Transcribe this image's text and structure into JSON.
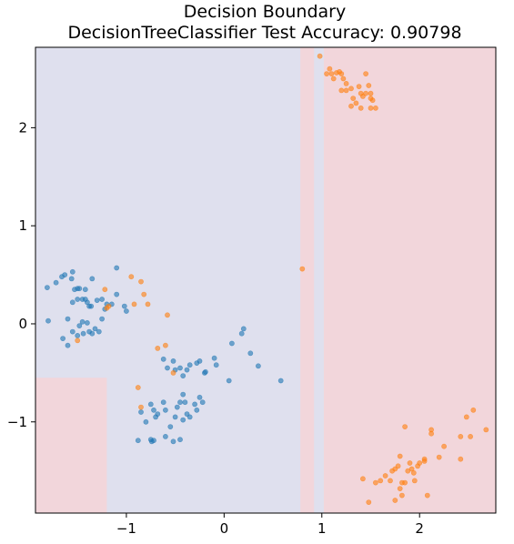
{
  "chart_data": {
    "type": "scatter",
    "title": "Decision Boundary",
    "subtitle": "DecisionTreeClassifier Test Accuracy: 0.90798",
    "xlim": [
      -1.93,
      2.78
    ],
    "ylim": [
      -1.93,
      2.82
    ],
    "x_ticks": [
      {
        "value": -1,
        "label": "−1"
      },
      {
        "value": 0,
        "label": "0"
      },
      {
        "value": 1,
        "label": "1"
      },
      {
        "value": 2,
        "label": "2"
      }
    ],
    "y_ticks": [
      {
        "value": -1,
        "label": "−1"
      },
      {
        "value": 0,
        "label": "0"
      },
      {
        "value": 1,
        "label": "1"
      },
      {
        "value": 2,
        "label": "2"
      }
    ],
    "grid": false,
    "regions": [
      {
        "class": 1,
        "x": [
          0.78,
          0.92
        ],
        "y": [
          -1.93,
          2.82
        ],
        "color": "#f2d6db"
      },
      {
        "class": 1,
        "x": [
          1.02,
          2.78
        ],
        "y": [
          -1.93,
          2.82
        ],
        "color": "#f2d6db"
      },
      {
        "class": 1,
        "x": [
          -1.93,
          -1.2
        ],
        "y": [
          -1.93,
          -0.55
        ],
        "color": "#f2d6db"
      }
    ],
    "background_color": "#dfe0ee",
    "series": [
      {
        "color": "#1f77b4",
        "points": [
          [
            -1.81,
            0.37
          ],
          [
            -1.72,
            0.42
          ],
          [
            -1.66,
            0.48
          ],
          [
            -1.63,
            0.5
          ],
          [
            -1.55,
            0.53
          ],
          [
            -1.56,
            0.46
          ],
          [
            -1.5,
            0.36
          ],
          [
            -1.53,
            0.35
          ],
          [
            -1.48,
            0.36
          ],
          [
            -1.5,
            0.25
          ],
          [
            -1.45,
            0.25
          ],
          [
            -1.42,
            0.25
          ],
          [
            -1.55,
            0.22
          ],
          [
            -1.4,
            0.22
          ],
          [
            -1.38,
            0.18
          ],
          [
            -1.36,
            0.18
          ],
          [
            -1.35,
            0.46
          ],
          [
            -1.3,
            0.24
          ],
          [
            -1.25,
            0.25
          ],
          [
            -1.2,
            0.2
          ],
          [
            -1.45,
            0.02
          ],
          [
            -1.48,
            -0.02
          ],
          [
            -1.44,
            -0.1
          ],
          [
            -1.4,
            0.01
          ],
          [
            -1.38,
            -0.08
          ],
          [
            -1.35,
            -0.1
          ],
          [
            -1.32,
            -0.05
          ],
          [
            -1.28,
            -0.08
          ],
          [
            -1.25,
            0.05
          ],
          [
            -1.6,
            0.05
          ],
          [
            -1.65,
            -0.15
          ],
          [
            -1.6,
            -0.22
          ],
          [
            -1.55,
            -0.08
          ],
          [
            -1.5,
            -0.12
          ],
          [
            -1.8,
            0.03
          ],
          [
            -1.22,
            0.15
          ],
          [
            -1.15,
            0.2
          ],
          [
            -1.1,
            0.57
          ],
          [
            -1.1,
            0.3
          ],
          [
            -1.02,
            0.18
          ],
          [
            -1.0,
            0.13
          ],
          [
            -1.42,
            0.35
          ],
          [
            -0.62,
            -0.36
          ],
          [
            -0.58,
            -0.45
          ],
          [
            -0.52,
            -0.38
          ],
          [
            -0.5,
            -0.47
          ],
          [
            -0.45,
            -0.45
          ],
          [
            -0.42,
            -0.53
          ],
          [
            -0.38,
            -0.47
          ],
          [
            -0.35,
            -0.42
          ],
          [
            -0.28,
            -0.4
          ],
          [
            -0.25,
            -0.38
          ],
          [
            -0.2,
            -0.5
          ],
          [
            -0.19,
            -0.49
          ],
          [
            -0.1,
            -0.35
          ],
          [
            -0.08,
            -0.42
          ],
          [
            0.05,
            -0.58
          ],
          [
            0.08,
            -0.2
          ],
          [
            0.18,
            -0.1
          ],
          [
            0.2,
            -0.05
          ],
          [
            0.27,
            -0.3
          ],
          [
            0.35,
            -0.43
          ],
          [
            0.58,
            -0.58
          ],
          [
            -0.85,
            -0.9
          ],
          [
            -0.8,
            -1.0
          ],
          [
            -0.75,
            -0.82
          ],
          [
            -0.72,
            -0.88
          ],
          [
            -0.7,
            -0.95
          ],
          [
            -0.68,
            -0.92
          ],
          [
            -0.62,
            -0.8
          ],
          [
            -0.6,
            -0.88
          ],
          [
            -0.55,
            -1.05
          ],
          [
            -0.5,
            -0.95
          ],
          [
            -0.48,
            -0.85
          ],
          [
            -0.45,
            -0.8
          ],
          [
            -0.42,
            -0.72
          ],
          [
            -0.4,
            -0.8
          ],
          [
            -0.38,
            -0.92
          ],
          [
            -0.35,
            -0.95
          ],
          [
            -0.3,
            -0.82
          ],
          [
            -0.28,
            -0.88
          ],
          [
            -0.25,
            -0.75
          ],
          [
            -0.22,
            -0.8
          ],
          [
            -0.6,
            -1.15
          ],
          [
            -0.52,
            -1.2
          ],
          [
            -0.72,
            -1.19
          ],
          [
            -0.74,
            -1.2
          ],
          [
            -0.88,
            -1.19
          ],
          [
            -0.45,
            -1.18
          ],
          [
            -0.42,
            -0.98
          ],
          [
            -0.75,
            -1.18
          ]
        ]
      },
      {
        "color": "#ff7f0e",
        "points": [
          [
            -1.22,
            0.35
          ],
          [
            -1.18,
            0.18
          ],
          [
            -0.95,
            0.48
          ],
          [
            -0.85,
            0.43
          ],
          [
            -0.82,
            0.3
          ],
          [
            -0.78,
            0.2
          ],
          [
            -0.68,
            -0.25
          ],
          [
            -0.6,
            -0.22
          ],
          [
            -0.58,
            0.09
          ],
          [
            -0.52,
            -0.5
          ],
          [
            -0.88,
            -0.65
          ],
          [
            -0.85,
            -0.85
          ],
          [
            -1.5,
            -0.17
          ],
          [
            -1.2,
            0.16
          ],
          [
            -0.92,
            0.2
          ],
          [
            0.8,
            0.56
          ],
          [
            0.98,
            2.73
          ],
          [
            1.05,
            2.55
          ],
          [
            1.08,
            2.6
          ],
          [
            1.1,
            2.55
          ],
          [
            1.12,
            2.5
          ],
          [
            1.15,
            2.56
          ],
          [
            1.18,
            2.57
          ],
          [
            1.2,
            2.55
          ],
          [
            1.22,
            2.5
          ],
          [
            1.25,
            2.45
          ],
          [
            1.25,
            2.38
          ],
          [
            1.3,
            2.4
          ],
          [
            1.32,
            2.3
          ],
          [
            1.35,
            2.25
          ],
          [
            1.38,
            2.42
          ],
          [
            1.4,
            2.35
          ],
          [
            1.42,
            2.32
          ],
          [
            1.45,
            2.55
          ],
          [
            1.48,
            2.43
          ],
          [
            1.5,
            2.35
          ],
          [
            1.5,
            2.3
          ],
          [
            1.52,
            2.28
          ],
          [
            1.55,
            2.2
          ],
          [
            1.5,
            2.2
          ],
          [
            1.4,
            2.2
          ],
          [
            1.3,
            2.22
          ],
          [
            1.2,
            2.38
          ],
          [
            1.45,
            2.35
          ],
          [
            1.42,
            -1.58
          ],
          [
            1.48,
            -1.82
          ],
          [
            1.55,
            -1.62
          ],
          [
            1.6,
            -1.6
          ],
          [
            1.65,
            -1.55
          ],
          [
            1.7,
            -1.6
          ],
          [
            1.72,
            -1.5
          ],
          [
            1.75,
            -1.48
          ],
          [
            1.78,
            -1.45
          ],
          [
            1.8,
            -1.35
          ],
          [
            1.8,
            -1.68
          ],
          [
            1.82,
            -1.75
          ],
          [
            1.85,
            -1.62
          ],
          [
            1.88,
            -1.5
          ],
          [
            1.9,
            -1.42
          ],
          [
            1.92,
            -1.48
          ],
          [
            1.94,
            -1.52
          ],
          [
            1.95,
            -1.6
          ],
          [
            1.98,
            -1.45
          ],
          [
            2.0,
            -1.42
          ],
          [
            2.05,
            -1.38
          ],
          [
            2.08,
            -1.75
          ],
          [
            2.12,
            -1.12
          ],
          [
            2.12,
            -1.08
          ],
          [
            2.2,
            -1.36
          ],
          [
            2.25,
            -1.25
          ],
          [
            2.42,
            -1.15
          ],
          [
            2.42,
            -1.38
          ],
          [
            2.48,
            -0.95
          ],
          [
            2.52,
            -1.15
          ],
          [
            2.55,
            -0.88
          ],
          [
            2.68,
            -1.08
          ],
          [
            2.05,
            -1.4
          ],
          [
            1.85,
            -1.05
          ],
          [
            1.82,
            -1.62
          ],
          [
            1.75,
            -1.8
          ]
        ]
      }
    ]
  }
}
